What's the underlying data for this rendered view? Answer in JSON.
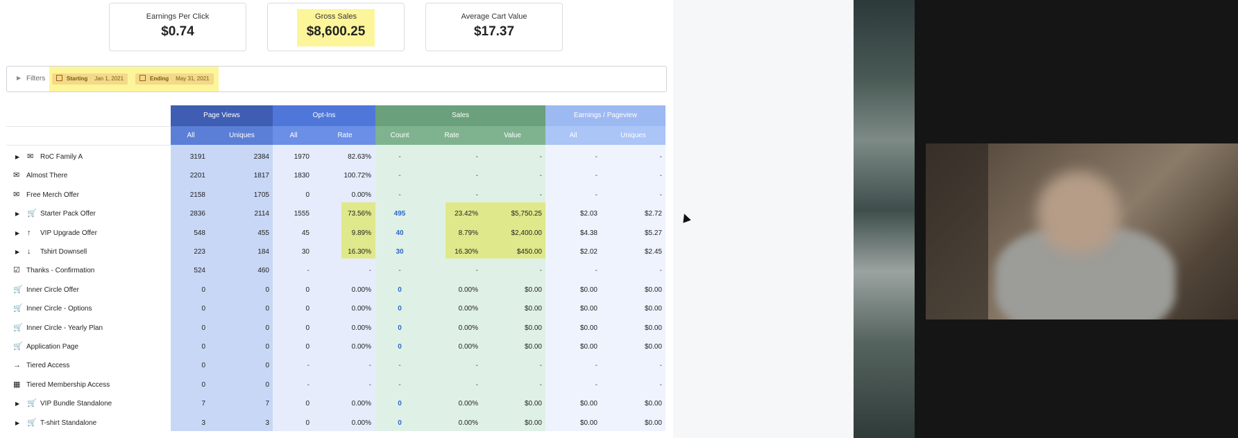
{
  "kpis": [
    {
      "label": "Earnings Per Click",
      "value": "$0.74"
    },
    {
      "label": "Gross Sales",
      "value": "$8,600.25"
    },
    {
      "label": "Average Cart Value",
      "value": "$17.37"
    }
  ],
  "filters": {
    "label": "Filters",
    "starting_label": "Starting",
    "starting_date": "Jan 1, 2021",
    "ending_label": "Ending",
    "ending_date": "May 31, 2021"
  },
  "groups": [
    "Page Views",
    "Opt-Ins",
    "Sales",
    "Earnings / Pageview"
  ],
  "subheaders": [
    "All",
    "Uniques",
    "All",
    "Rate",
    "Count",
    "Rate",
    "Value",
    "All",
    "Uniques"
  ],
  "colors": {
    "page_views_header": "#3f5db3",
    "page_views_sub": "#5b7fd6",
    "page_views_body": "#c9d7f6",
    "optins_header": "#4f77d9",
    "optins_sub": "#6b8fe6",
    "optins_body": "#e6ecfb",
    "sales_header": "#6aa07b",
    "sales_sub": "#7fb38f",
    "sales_body": "#dff1e6",
    "epv_header": "#9db9f2",
    "epv_sub": "#aac5f6",
    "epv_body": "#eef3fd",
    "highlight": "#fdf59a",
    "cell_highlight": "#dfe88a",
    "link_blue": "#2b67c8"
  },
  "rows": [
    {
      "name": "RoC Family A",
      "icon": "envelope-icon",
      "expandable": true,
      "cells": [
        "3191",
        "2384",
        "1970",
        "82.63%",
        "-",
        "-",
        "-",
        "-",
        "-"
      ]
    },
    {
      "name": "Almost There",
      "icon": "envelope-icon",
      "expandable": false,
      "cells": [
        "2201",
        "1817",
        "1830",
        "100.72%",
        "-",
        "-",
        "-",
        "-",
        "-"
      ]
    },
    {
      "name": "Free Merch Offer",
      "icon": "envelope-icon",
      "expandable": false,
      "cells": [
        "2158",
        "1705",
        "0",
        "0.00%",
        "-",
        "-",
        "-",
        "-",
        "-"
      ]
    },
    {
      "name": "Starter Pack Offer",
      "icon": "cart-icon",
      "expandable": true,
      "cells": [
        "2836",
        "2114",
        "1555",
        "73.56%",
        "495",
        "23.42%",
        "$5,750.25",
        "$2.03",
        "$2.72"
      ]
    },
    {
      "name": "VIP Upgrade Offer",
      "icon": "arrow-up-icon",
      "expandable": true,
      "cells": [
        "548",
        "455",
        "45",
        "9.89%",
        "40",
        "8.79%",
        "$2,400.00",
        "$4.38",
        "$5.27"
      ]
    },
    {
      "name": "Tshirt Downsell",
      "icon": "arrow-down-icon",
      "expandable": true,
      "cells": [
        "223",
        "184",
        "30",
        "16.30%",
        "30",
        "16.30%",
        "$450.00",
        "$2.02",
        "$2.45"
      ]
    },
    {
      "name": "Thanks - Confirmation",
      "icon": "checkbox-icon",
      "expandable": false,
      "cells": [
        "524",
        "460",
        "-",
        "-",
        "-",
        "-",
        "-",
        "-",
        "-"
      ]
    },
    {
      "name": "Inner Circle Offer",
      "icon": "cart-icon",
      "expandable": false,
      "cells": [
        "0",
        "0",
        "0",
        "0.00%",
        "0",
        "0.00%",
        "$0.00",
        "$0.00",
        "$0.00"
      ]
    },
    {
      "name": "Inner Circle - Options",
      "icon": "cart-icon",
      "expandable": false,
      "cells": [
        "0",
        "0",
        "0",
        "0.00%",
        "0",
        "0.00%",
        "$0.00",
        "$0.00",
        "$0.00"
      ]
    },
    {
      "name": "Inner Circle - Yearly Plan",
      "icon": "cart-icon",
      "expandable": false,
      "cells": [
        "0",
        "0",
        "0",
        "0.00%",
        "0",
        "0.00%",
        "$0.00",
        "$0.00",
        "$0.00"
      ]
    },
    {
      "name": "Application Page",
      "icon": "cart-icon",
      "expandable": false,
      "cells": [
        "0",
        "0",
        "0",
        "0.00%",
        "0",
        "0.00%",
        "$0.00",
        "$0.00",
        "$0.00"
      ]
    },
    {
      "name": "Tiered Access",
      "icon": "sign-in-icon",
      "expandable": false,
      "cells": [
        "0",
        "0",
        "-",
        "-",
        "-",
        "-",
        "-",
        "-",
        "-"
      ]
    },
    {
      "name": "Tiered Membership Access",
      "icon": "dashboard-icon",
      "expandable": false,
      "cells": [
        "0",
        "0",
        "-",
        "-",
        "-",
        "-",
        "-",
        "-",
        "-"
      ]
    },
    {
      "name": "VIP Bundle Standalone",
      "icon": "cart-icon",
      "expandable": true,
      "cells": [
        "7",
        "7",
        "0",
        "0.00%",
        "0",
        "0.00%",
        "$0.00",
        "$0.00",
        "$0.00"
      ]
    },
    {
      "name": "T-shirt Standalone",
      "icon": "cart-icon",
      "expandable": true,
      "cells": [
        "3",
        "3",
        "0",
        "0.00%",
        "0",
        "0.00%",
        "$0.00",
        "$0.00",
        "$0.00"
      ]
    }
  ]
}
